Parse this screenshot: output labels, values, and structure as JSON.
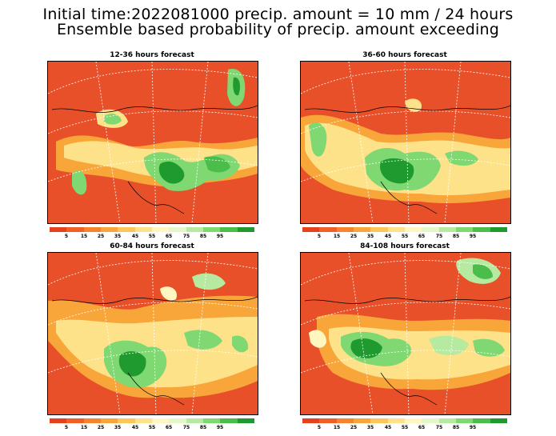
{
  "title": {
    "line1": "Initial time:2022081000 precip. amount = 10 mm / 24 hours",
    "line2": "Ensemble based probability of precip. amount exceeding"
  },
  "panels": [
    {
      "title": "12-36 hours forecast"
    },
    {
      "title": "36-60 hours forecast"
    },
    {
      "title": "60-84 hours forecast"
    },
    {
      "title": "84-108 hours forecast"
    }
  ],
  "colorbar": {
    "colors": [
      "#e8401c",
      "#f06024",
      "#f5842c",
      "#f8a63a",
      "#fbc65a",
      "#fde28a",
      "#fff6c0",
      "#e4f7c8",
      "#b6eaa0",
      "#7fd872",
      "#4bbd4a",
      "#1f9a2e"
    ],
    "ticks": [
      "5",
      "15",
      "25",
      "35",
      "45",
      "55",
      "65",
      "75",
      "85",
      "95"
    ]
  }
}
